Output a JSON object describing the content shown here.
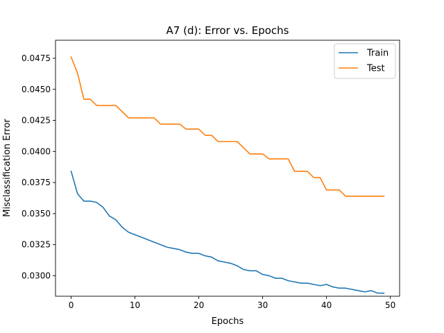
{
  "chart_data": {
    "type": "line",
    "title": "A7 (d): Error vs. Epochs",
    "xlabel": "Epochs",
    "ylabel": "Misclassification Error",
    "xlim": [
      -2.45,
      51.45
    ],
    "ylim": [
      0.02835,
      0.04895
    ],
    "xticks": [
      0,
      10,
      20,
      30,
      40,
      50
    ],
    "yticks": [
      0.03,
      0.0325,
      0.035,
      0.0375,
      0.04,
      0.0425,
      0.045,
      0.0475
    ],
    "xtick_labels": [
      "0",
      "10",
      "20",
      "30",
      "40",
      "50"
    ],
    "ytick_labels": [
      "0.0300",
      "0.0325",
      "0.0350",
      "0.0375",
      "0.0400",
      "0.0425",
      "0.0450",
      "0.0475"
    ],
    "grid": false,
    "legend": "top-right",
    "x": [
      0,
      1,
      2,
      3,
      4,
      5,
      6,
      7,
      8,
      9,
      10,
      11,
      12,
      13,
      14,
      15,
      16,
      17,
      18,
      19,
      20,
      21,
      22,
      23,
      24,
      25,
      26,
      27,
      28,
      29,
      30,
      31,
      32,
      33,
      34,
      35,
      36,
      37,
      38,
      39,
      40,
      41,
      42,
      43,
      44,
      45,
      46,
      47,
      48,
      49
    ],
    "series": [
      {
        "name": "Train",
        "color": "#1f77b4",
        "values": [
          0.0384,
          0.0366,
          0.036,
          0.036,
          0.0359,
          0.0355,
          0.0348,
          0.0345,
          0.0339,
          0.0335,
          0.0333,
          0.0331,
          0.0329,
          0.0327,
          0.0325,
          0.0323,
          0.0322,
          0.0321,
          0.0319,
          0.0318,
          0.0318,
          0.0316,
          0.0315,
          0.0312,
          0.0311,
          0.031,
          0.0308,
          0.0305,
          0.0304,
          0.0304,
          0.0301,
          0.03,
          0.0298,
          0.0298,
          0.0296,
          0.0295,
          0.0294,
          0.0294,
          0.0293,
          0.0292,
          0.0293,
          0.0291,
          0.029,
          0.029,
          0.0289,
          0.0288,
          0.0287,
          0.0288,
          0.0286,
          0.0286
        ]
      },
      {
        "name": "Test",
        "color": "#ff7f0e",
        "values": [
          0.0476,
          0.0463,
          0.0442,
          0.0442,
          0.0437,
          0.0437,
          0.0437,
          0.0437,
          0.0432,
          0.0427,
          0.0427,
          0.0427,
          0.0427,
          0.0427,
          0.0422,
          0.0422,
          0.0422,
          0.0422,
          0.0418,
          0.0418,
          0.0418,
          0.0413,
          0.0413,
          0.0408,
          0.0408,
          0.0408,
          0.0408,
          0.0403,
          0.0398,
          0.0398,
          0.0398,
          0.0394,
          0.0394,
          0.0394,
          0.0394,
          0.0384,
          0.0384,
          0.0384,
          0.0379,
          0.0379,
          0.0369,
          0.0369,
          0.0369,
          0.0364,
          0.0364,
          0.0364,
          0.0364,
          0.0364,
          0.0364,
          0.0364
        ]
      }
    ]
  }
}
